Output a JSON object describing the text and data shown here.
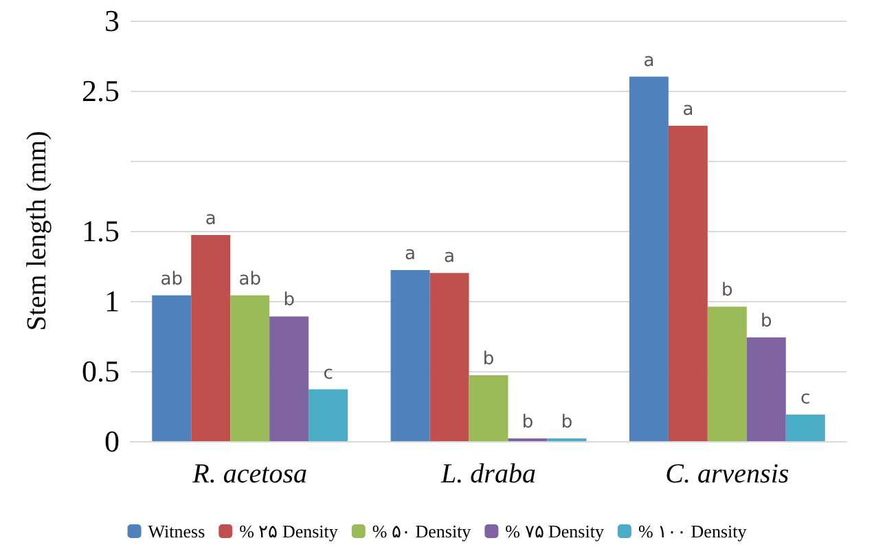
{
  "chart_data": {
    "type": "bar",
    "ylabel": "Stem length (mm)",
    "categories": [
      "R. acetosa",
      "L. draba",
      "C. arvensis"
    ],
    "series": [
      {
        "name": "Witness",
        "color": "#4f81bd",
        "values": [
          1.04,
          1.22,
          2.6
        ],
        "value_labels": [
          "ab",
          "a",
          "a"
        ]
      },
      {
        "name": "% ۲۵ Density",
        "color": "#c0504d",
        "values": [
          1.47,
          1.2,
          2.25
        ],
        "value_labels": [
          "a",
          "a",
          "a"
        ]
      },
      {
        "name": "% ۵۰ Density",
        "color": "#9bbb59",
        "values": [
          1.04,
          0.47,
          0.96
        ],
        "value_labels": [
          "ab",
          "b",
          "b"
        ]
      },
      {
        "name": "% ۷۵ Density",
        "color": "#8064a2",
        "values": [
          0.89,
          0.02,
          0.74
        ],
        "value_labels": [
          "b",
          "b",
          "b"
        ]
      },
      {
        "name": "% ۱۰۰ Density",
        "color": "#4bacc6",
        "values": [
          0.37,
          0.02,
          0.19
        ],
        "value_labels": [
          "c",
          "b",
          "c"
        ]
      }
    ],
    "ylim": [
      0,
      3
    ],
    "yticks": [
      0,
      0.5,
      1,
      1.5,
      {
        "value": 2,
        "label": null
      },
      2.5,
      3
    ],
    "grid": true,
    "legend": "bottom"
  }
}
